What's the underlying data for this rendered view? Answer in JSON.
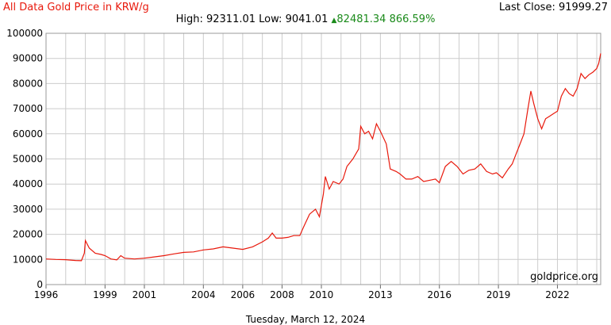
{
  "header": {
    "title": "All Data Gold Price in KRW/g",
    "last_close_label": "Last Close:",
    "last_close_value": "91999.27",
    "high_label": "High:",
    "high_value": "92311.01",
    "low_label": "Low:",
    "low_value": "9041.01",
    "change_arrow": "▲",
    "change_value": "82481.34",
    "change_pct": "866.59%"
  },
  "watermark": "goldprice.org",
  "footer_date": "Tuesday, March 12, 2024",
  "colors": {
    "line": "#e8190c",
    "grid": "#cccccc",
    "title": "#e8190c",
    "change": "#1a8a1a"
  },
  "chart_data": {
    "type": "line",
    "title": "All Data Gold Price in KRW/g",
    "xlabel": "",
    "ylabel": "",
    "grid": true,
    "x_ticks": [
      "1996",
      "1999",
      "2001",
      "2004",
      "2006",
      "2008",
      "2010",
      "2013",
      "2016",
      "2019",
      "2022"
    ],
    "y_ticks": [
      0,
      10000,
      20000,
      30000,
      40000,
      50000,
      60000,
      70000,
      80000,
      90000,
      100000
    ],
    "ylim": [
      0,
      100000
    ],
    "xlim": [
      1996.0,
      2024.2
    ],
    "series": [
      {
        "values": [
          [
            1996.0,
            10200
          ],
          [
            1996.5,
            10000
          ],
          [
            1997.0,
            9900
          ],
          [
            1997.5,
            9600
          ],
          [
            1997.8,
            9500
          ],
          [
            1997.95,
            12500
          ],
          [
            1998.0,
            17500
          ],
          [
            1998.2,
            14500
          ],
          [
            1998.5,
            12500
          ],
          [
            1998.8,
            12000
          ],
          [
            1999.0,
            11500
          ],
          [
            1999.3,
            10200
          ],
          [
            1999.6,
            9800
          ],
          [
            1999.8,
            11500
          ],
          [
            2000.0,
            10500
          ],
          [
            2000.5,
            10200
          ],
          [
            2001.0,
            10500
          ],
          [
            2001.5,
            11000
          ],
          [
            2002.0,
            11500
          ],
          [
            2002.5,
            12200
          ],
          [
            2003.0,
            12800
          ],
          [
            2003.5,
            13000
          ],
          [
            2004.0,
            13800
          ],
          [
            2004.5,
            14200
          ],
          [
            2005.0,
            15000
          ],
          [
            2005.5,
            14500
          ],
          [
            2006.0,
            14000
          ],
          [
            2006.5,
            15000
          ],
          [
            2007.0,
            17000
          ],
          [
            2007.3,
            18500
          ],
          [
            2007.5,
            20500
          ],
          [
            2007.7,
            18500
          ],
          [
            2008.0,
            18500
          ],
          [
            2008.3,
            18800
          ],
          [
            2008.6,
            19500
          ],
          [
            2008.9,
            19500
          ],
          [
            2009.1,
            23000
          ],
          [
            2009.4,
            28000
          ],
          [
            2009.7,
            30000
          ],
          [
            2009.9,
            27000
          ],
          [
            2010.1,
            36000
          ],
          [
            2010.2,
            43000
          ],
          [
            2010.4,
            38000
          ],
          [
            2010.6,
            41000
          ],
          [
            2010.9,
            40000
          ],
          [
            2011.1,
            42000
          ],
          [
            2011.3,
            47000
          ],
          [
            2011.6,
            50000
          ],
          [
            2011.9,
            54000
          ],
          [
            2012.0,
            63000
          ],
          [
            2012.2,
            60000
          ],
          [
            2012.4,
            61000
          ],
          [
            2012.6,
            58000
          ],
          [
            2012.8,
            64000
          ],
          [
            2013.0,
            61000
          ],
          [
            2013.3,
            56000
          ],
          [
            2013.5,
            46000
          ],
          [
            2013.8,
            45000
          ],
          [
            2014.0,
            44000
          ],
          [
            2014.3,
            42000
          ],
          [
            2014.6,
            42000
          ],
          [
            2014.9,
            43000
          ],
          [
            2015.2,
            41000
          ],
          [
            2015.5,
            41500
          ],
          [
            2015.8,
            42000
          ],
          [
            2016.0,
            40500
          ],
          [
            2016.3,
            47000
          ],
          [
            2016.6,
            49000
          ],
          [
            2016.9,
            47000
          ],
          [
            2017.2,
            44000
          ],
          [
            2017.5,
            45500
          ],
          [
            2017.8,
            46000
          ],
          [
            2018.1,
            48000
          ],
          [
            2018.4,
            45000
          ],
          [
            2018.7,
            44000
          ],
          [
            2018.9,
            44500
          ],
          [
            2019.2,
            42500
          ],
          [
            2019.5,
            46000
          ],
          [
            2019.7,
            48000
          ],
          [
            2019.9,
            52000
          ],
          [
            2020.1,
            56000
          ],
          [
            2020.3,
            60000
          ],
          [
            2020.5,
            70000
          ],
          [
            2020.65,
            77000
          ],
          [
            2020.8,
            72000
          ],
          [
            2021.0,
            66000
          ],
          [
            2021.2,
            62000
          ],
          [
            2021.4,
            66000
          ],
          [
            2021.6,
            67000
          ],
          [
            2021.8,
            68000
          ],
          [
            2022.0,
            69000
          ],
          [
            2022.2,
            75000
          ],
          [
            2022.4,
            78000
          ],
          [
            2022.6,
            76000
          ],
          [
            2022.8,
            75000
          ],
          [
            2023.0,
            78000
          ],
          [
            2023.2,
            84000
          ],
          [
            2023.4,
            82000
          ],
          [
            2023.6,
            83500
          ],
          [
            2023.8,
            84500
          ],
          [
            2024.0,
            86000
          ],
          [
            2024.1,
            88000
          ],
          [
            2024.2,
            92000
          ]
        ]
      }
    ]
  }
}
